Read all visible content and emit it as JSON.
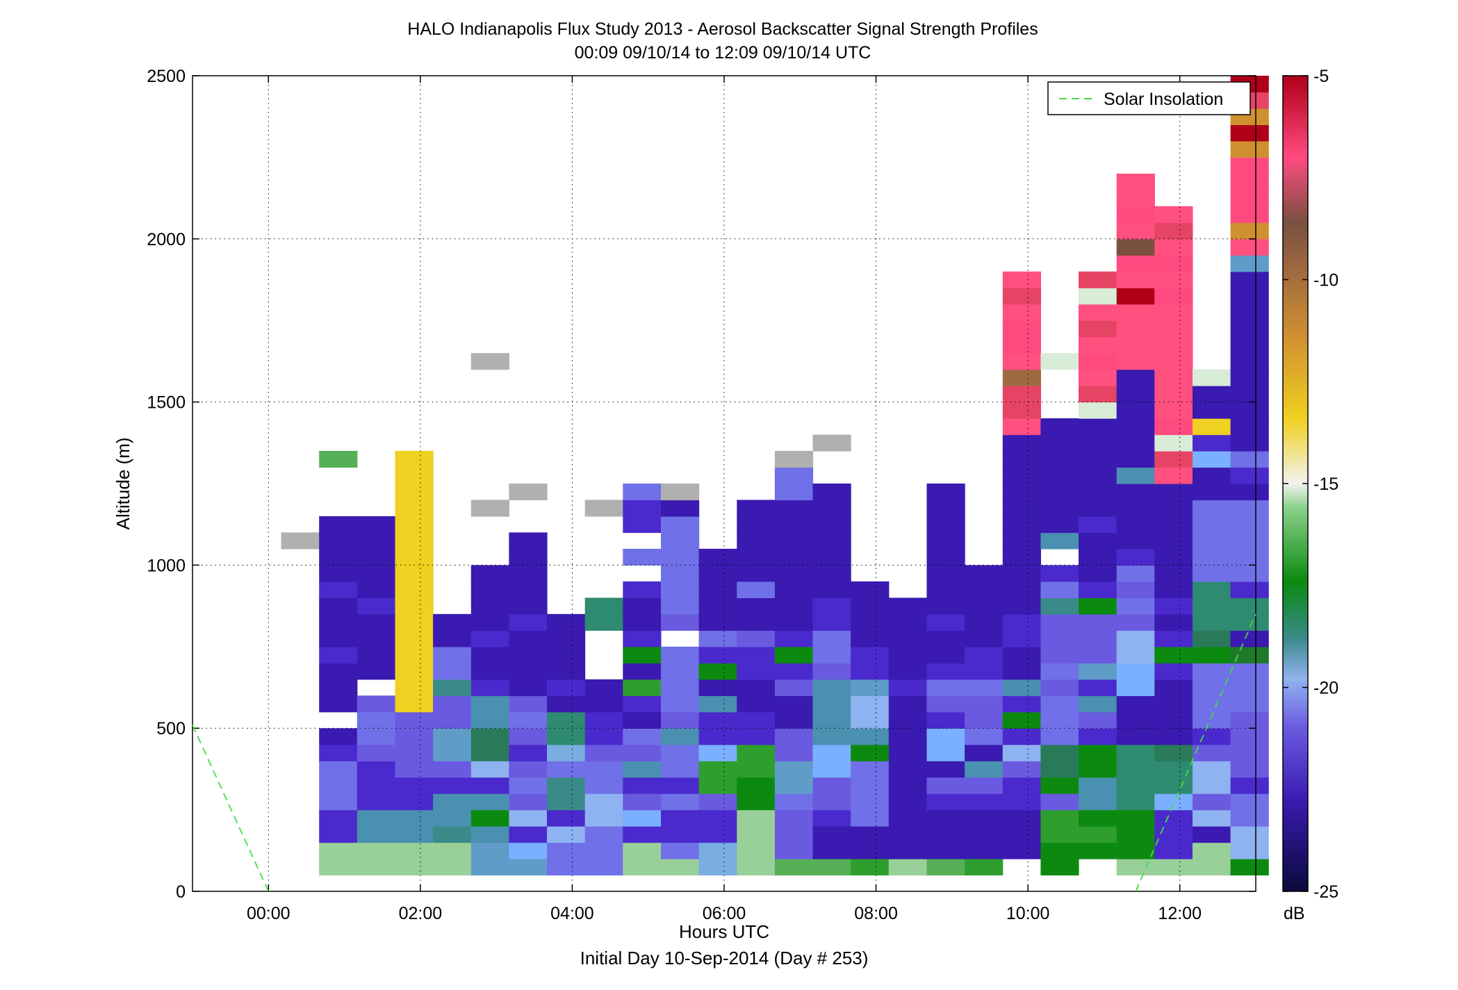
{
  "chart_data": {
    "type": "heatmap",
    "title": "HALO Indianapolis Flux Study 2013 - Aerosol Backscatter Signal Strength Profiles",
    "subtitle": "00:09 09/10/14 to 12:09 09/10/14  UTC",
    "xlabel": "Hours UTC",
    "xlabel2": "Initial Day 10-Sep-2014 (Day # 253)",
    "ylabel": "Altitude (m)",
    "xlim": [
      -1,
      13
    ],
    "ylim": [
      0,
      2500
    ],
    "x_ticks": [
      {
        "value": 0,
        "label": "00:00"
      },
      {
        "value": 2,
        "label": "02:00"
      },
      {
        "value": 4,
        "label": "04:00"
      },
      {
        "value": 6,
        "label": "06:00"
      },
      {
        "value": 8,
        "label": "08:00"
      },
      {
        "value": 10,
        "label": "10:00"
      },
      {
        "value": 12,
        "label": "12:00"
      }
    ],
    "y_ticks": [
      {
        "value": 0,
        "label": "0"
      },
      {
        "value": 500,
        "label": "500"
      },
      {
        "value": 1000,
        "label": "1000"
      },
      {
        "value": 1500,
        "label": "1500"
      },
      {
        "value": 2000,
        "label": "2000"
      },
      {
        "value": 2500,
        "label": "2500"
      }
    ],
    "grid": true,
    "legend": {
      "position": "top-right",
      "entries": [
        {
          "label": "Solar Insolation",
          "color": "#44dd44",
          "style": "dashed"
        }
      ]
    },
    "colorbar": {
      "unit": "dB",
      "range": [
        -25,
        -5
      ],
      "ticks": [
        {
          "value": -5,
          "label": "-5"
        },
        {
          "value": -10,
          "label": "-10"
        },
        {
          "value": -15,
          "label": "-15"
        },
        {
          "value": -20,
          "label": "-20"
        },
        {
          "value": -25,
          "label": "-25"
        }
      ]
    },
    "cells": {
      "x_start": 0.167,
      "x_step": 0.5,
      "y_start": 50,
      "y_step": 50,
      "columns": [
        "....................X.........",
        "hhffeeefnAnnnfnnnfnnnn...i.....",
        "hhrrfffaeeaAnnnnfnnnnn....",
        "hhrrffaaaaYYYYYYYYYYYYYYYY",
        "hhorrfaggaaoeenn",
        "ggrkrfbpprrfnnfnnnn...X........X",
        "gdfbaeafaeannnnfnnnnn..X",
        "eebfooecqqnfnnnn",
        "eeebbeeaffnn...qq.....X",
        "hhfdafraenfjnkfnnf.e.ffe",
        "heffefeeraeeee.aeeeeeenX",
        "ccffajjdffrnkfennnnn",
        "hhhhkkjjffnnffannennnnn",
        "iaaaeggaannafkfnnnnnnnneeX",
        "innfaaddrrrraeeffnnnnnnn..X",
        "jnneeeekrbbgffnnnn",
        "hnnnnnnnnnnfnnnnn",
        "innnfanddfaefnnfnnnnnnnn",
        "jnnnfarneaaeffnnnnn",
        "AnnnffabfkfrnnffnnnnnnnnnnnRMMHRKKRMR",
        "kkjjakppeeeaeaaaoef.rnnnnnnn...S",
        "AkjkrrkkfarfgaaakfnnnfnnnnnnSMRKRMRSM",
        "hkkkqqqqnnnddbbaeaefnnnnrnnnnnnRRRRPRKJRKRR",
        "hfffdqqpnnnnfkfnfnnnnnnnRMSKRRRRRRRKRKRMR",
        "hhnbabbafeeeekpqqqeeeeenndfYnnS",
        "kbbeefaaaaeeemnqqfeeeeenfennnnnnnnnnngRFKKKKFPFMP"
      ]
    }
  }
}
